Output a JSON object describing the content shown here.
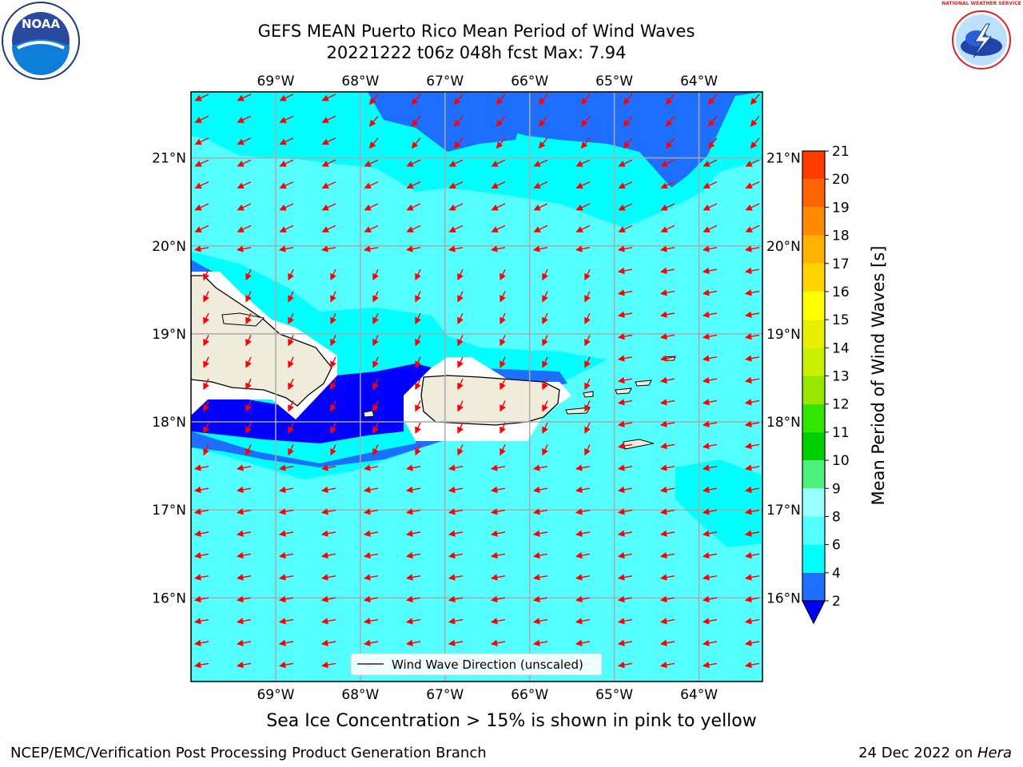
{
  "title": {
    "line1": "GEFS MEAN Puerto Rico Mean Period of Wind Waves",
    "line2": "20221222 t06z 048h fcst   Max: 7.94"
  },
  "map": {
    "lon_range": [
      -70,
      -63.25
    ],
    "lat_range": [
      15.05,
      21.75
    ],
    "lon_labels": [
      "69°W",
      "68°W",
      "67°W",
      "66°W",
      "65°W",
      "64°W"
    ],
    "lat_labels": [
      "16°N",
      "17°N",
      "18°N",
      "19°N",
      "20°N",
      "21°N"
    ],
    "legend_label": "Wind Wave Direction (unscaled)",
    "arrow_color": "#ff0000",
    "land_color": "#efecdc",
    "ocean_color": "#55ffff",
    "gridlines": true
  },
  "colorbar": {
    "label": "Mean Period of Wind Waves [s]",
    "ticks": [
      "2",
      "4",
      "6",
      "8",
      "9",
      "10",
      "11",
      "12",
      "13",
      "14",
      "15",
      "16",
      "17",
      "18",
      "19",
      "20",
      "21"
    ],
    "colors": [
      "#1e6eff",
      "#00ffff",
      "#55ffff",
      "#99ffff",
      "#4df07a",
      "#00d000",
      "#33e600",
      "#99e600",
      "#c8f000",
      "#e6f000",
      "#ffff00",
      "#ffd500",
      "#ffb300",
      "#ff8c00",
      "#ff6400",
      "#ff3c00",
      "#ff0000"
    ],
    "under_color": "#0000ff"
  },
  "note": "Sea Ice Concentration > 15% is shown in pink to yellow",
  "footer": {
    "left": "NCEP/EMC/Verification Post Processing Product Generation Branch",
    "right_date": "24 Dec 2022 on ",
    "right_host": "Hera"
  },
  "logos": {
    "noaa": "NOAA",
    "nws": "NATIONAL WEATHER SERVICE"
  }
}
